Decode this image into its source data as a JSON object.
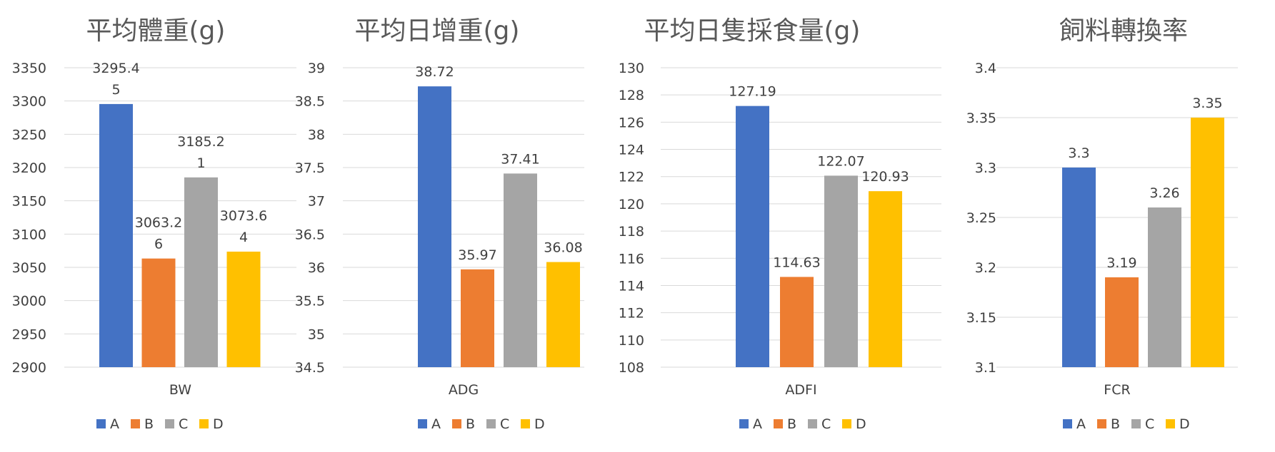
{
  "chart_data": [
    {
      "type": "bar",
      "title": "平均體重(g)",
      "category": "BW",
      "series": [
        {
          "name": "A",
          "value": 3295.45,
          "label_lines": [
            "3295.4",
            "5"
          ]
        },
        {
          "name": "B",
          "value": 3063.26,
          "label_lines": [
            "3063.2",
            "6"
          ]
        },
        {
          "name": "C",
          "value": 3185.21,
          "label_lines": [
            "3185.2",
            "1"
          ]
        },
        {
          "name": "D",
          "value": 3073.64,
          "label_lines": [
            "3073.6",
            "4"
          ]
        }
      ],
      "ylim": [
        2900,
        3350
      ],
      "yticks": [
        "2900",
        "2950",
        "3000",
        "3050",
        "3100",
        "3150",
        "3200",
        "3250",
        "3300",
        "3350"
      ],
      "legend": [
        "A",
        "B",
        "C",
        "D"
      ],
      "legend_position": "bottom",
      "grid": true
    },
    {
      "type": "bar",
      "title": "平均日增重(g)",
      "category": "ADG",
      "series": [
        {
          "name": "A",
          "value": 38.72,
          "label_lines": [
            "38.72"
          ]
        },
        {
          "name": "B",
          "value": 35.97,
          "label_lines": [
            "35.97"
          ]
        },
        {
          "name": "C",
          "value": 37.41,
          "label_lines": [
            "37.41"
          ]
        },
        {
          "name": "D",
          "value": 36.08,
          "label_lines": [
            "36.08"
          ]
        }
      ],
      "ylim": [
        34.5,
        39
      ],
      "yticks": [
        "34.5",
        "35",
        "35.5",
        "36",
        "36.5",
        "37",
        "37.5",
        "38",
        "38.5",
        "39"
      ],
      "legend": [
        "A",
        "B",
        "C",
        "D"
      ],
      "legend_position": "bottom",
      "grid": true
    },
    {
      "type": "bar",
      "title": "平均日隻採食量(g)",
      "category": "ADFI",
      "series": [
        {
          "name": "A",
          "value": 127.19,
          "label_lines": [
            "127.19"
          ]
        },
        {
          "name": "B",
          "value": 114.63,
          "label_lines": [
            "114.63"
          ]
        },
        {
          "name": "C",
          "value": 122.07,
          "label_lines": [
            "122.07"
          ]
        },
        {
          "name": "D",
          "value": 120.93,
          "label_lines": [
            "120.93"
          ]
        }
      ],
      "ylim": [
        108,
        130
      ],
      "yticks": [
        "108",
        "110",
        "112",
        "114",
        "116",
        "118",
        "120",
        "122",
        "124",
        "126",
        "128",
        "130"
      ],
      "legend": [
        "A",
        "B",
        "C",
        "D"
      ],
      "legend_position": "bottom",
      "grid": true
    },
    {
      "type": "bar",
      "title": "飼料轉換率",
      "category": "FCR",
      "series": [
        {
          "name": "A",
          "value": 3.3,
          "label_lines": [
            "3.3"
          ]
        },
        {
          "name": "B",
          "value": 3.19,
          "label_lines": [
            "3.19"
          ]
        },
        {
          "name": "C",
          "value": 3.26,
          "label_lines": [
            "3.26"
          ]
        },
        {
          "name": "D",
          "value": 3.35,
          "label_lines": [
            "3.35"
          ]
        }
      ],
      "ylim": [
        3.1,
        3.4
      ],
      "yticks": [
        "3.1",
        "3.15",
        "3.2",
        "3.25",
        "3.3",
        "3.35",
        "3.4"
      ],
      "legend": [
        "A",
        "B",
        "C",
        "D"
      ],
      "legend_position": "bottom",
      "grid": true
    }
  ],
  "colors": {
    "A": "#4472C4",
    "B": "#ED7D31",
    "C": "#A5A5A5",
    "D": "#FFC000",
    "grid": "#d9d9d9",
    "text": "#404040",
    "title": "#595959"
  }
}
